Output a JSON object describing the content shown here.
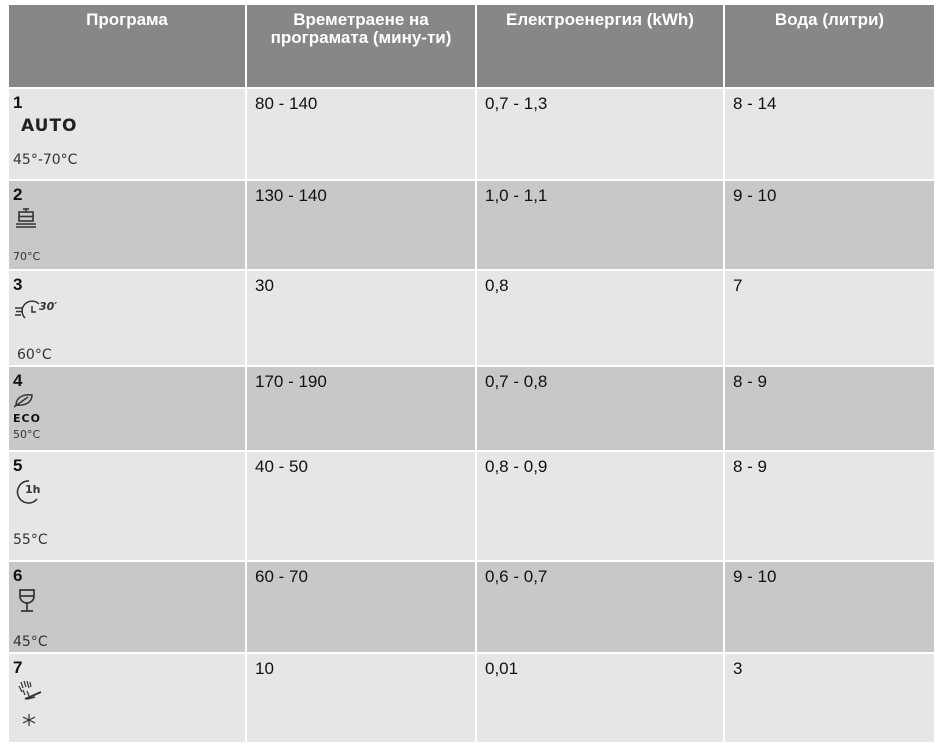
{
  "columns": [
    "Програма",
    "Времетраене на програмата (мину-ти)",
    "Електроенергия (kWh)",
    "Вода (литри)"
  ],
  "rows": [
    {
      "number": "1",
      "symbol": "AUTO",
      "icon": "auto-icon",
      "temperature": "45°-70°C",
      "duration": "80 - 140",
      "energy": "0,7 - 1,3",
      "water": "8 - 14"
    },
    {
      "number": "2",
      "icon": "intensive-pots-icon",
      "temperature": "70°C",
      "duration": "130 - 140",
      "energy": "1,0 - 1,1",
      "water": "9 - 10"
    },
    {
      "number": "3",
      "icon": "quick-30-icon",
      "temperature": "60°C",
      "duration": "30",
      "energy": "0,8",
      "water": "7"
    },
    {
      "number": "4",
      "symbol": "ECO",
      "icon": "eco-leaf-icon",
      "temperature": "50°C",
      "duration": "170 - 190",
      "energy": "0,7 - 0,8",
      "water": "8 - 9"
    },
    {
      "number": "5",
      "icon": "one-hour-clock-icon",
      "temperature": "55°C",
      "duration": "40 - 50",
      "energy": "0,8 - 0,9",
      "water": "8 - 9"
    },
    {
      "number": "6",
      "icon": "wine-glass-icon",
      "temperature": "45°C",
      "duration": "60 - 70",
      "energy": "0,6 - 0,7",
      "water": "9 - 10"
    },
    {
      "number": "7",
      "icon": "pre-rinse-shower-icon",
      "temperature": "",
      "duration": "10",
      "energy": "0,01",
      "water": "3"
    }
  ]
}
